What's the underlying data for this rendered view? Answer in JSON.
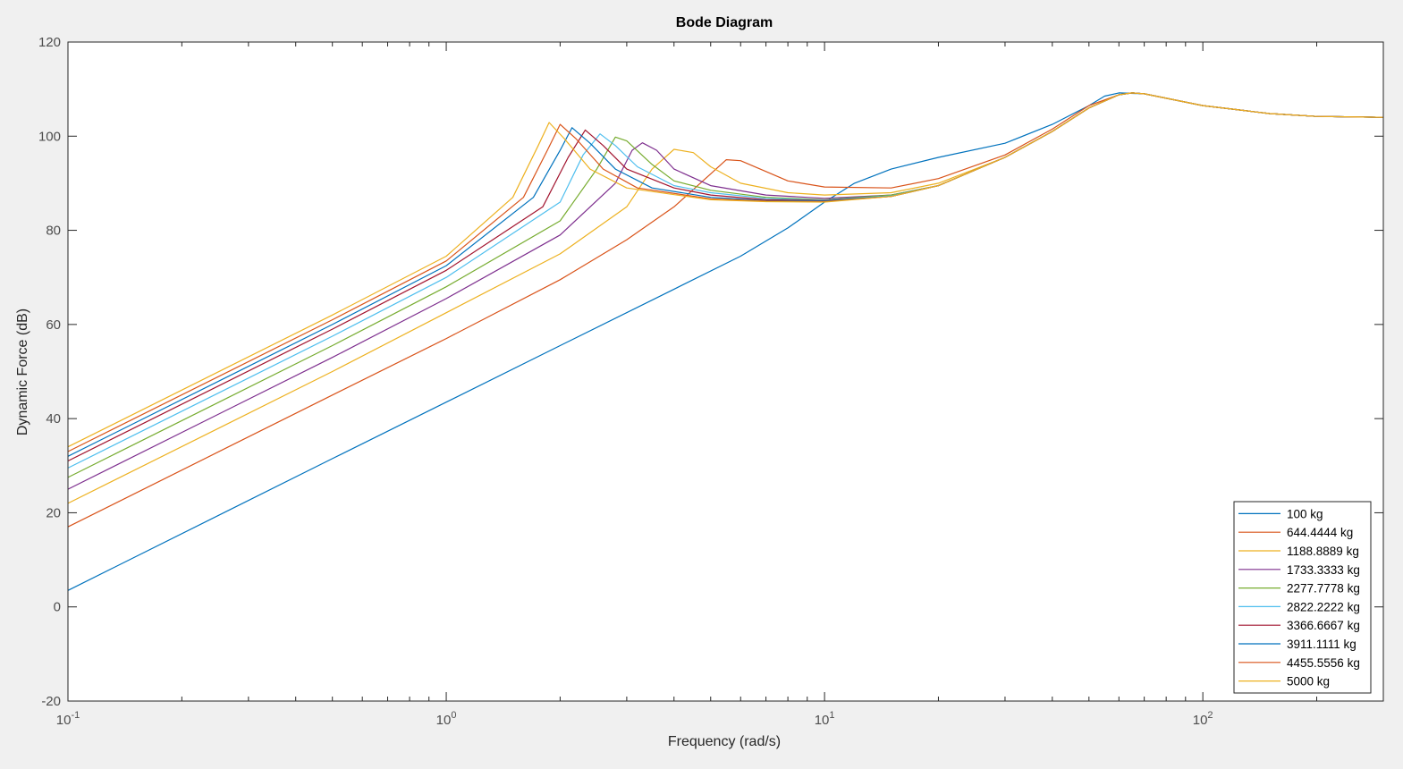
{
  "chart_data": {
    "type": "line",
    "title": "Bode Diagram",
    "xlabel": "Frequency  (rad/s)",
    "ylabel": "Dynamic Force (dB)",
    "xscale": "log",
    "xlim": [
      0.1,
      300
    ],
    "ylim": [
      -20,
      120
    ],
    "yticks": [
      -20,
      0,
      20,
      40,
      60,
      80,
      100,
      120
    ],
    "xticks": [
      {
        "value": 0.1,
        "base": "10",
        "exp": "-1"
      },
      {
        "value": 1,
        "base": "10",
        "exp": "0"
      },
      {
        "value": 10,
        "base": "10",
        "exp": "1"
      },
      {
        "value": 100,
        "base": "10",
        "exp": "2"
      }
    ],
    "grid": false,
    "legend_position": "bottom-right",
    "series": [
      {
        "name": "100 kg",
        "color": "#0072BD",
        "points": [
          [
            0.1,
            3.5
          ],
          [
            0.5,
            31.5
          ],
          [
            1,
            43.5
          ],
          [
            2,
            55.5
          ],
          [
            4,
            67.5
          ],
          [
            6,
            74.5
          ],
          [
            8,
            80.5
          ],
          [
            10,
            86
          ],
          [
            12,
            90
          ],
          [
            15,
            93
          ],
          [
            20,
            95.5
          ],
          [
            30,
            98.5
          ],
          [
            40,
            102.5
          ],
          [
            50,
            106.5
          ],
          [
            55,
            108.5
          ],
          [
            60,
            109.2
          ],
          [
            70,
            109
          ],
          [
            100,
            106.5
          ],
          [
            150,
            104.8
          ],
          [
            200,
            104.2
          ],
          [
            300,
            104
          ]
        ]
      },
      {
        "name": "644.4444 kg",
        "color": "#D95319",
        "points": [
          [
            0.1,
            17
          ],
          [
            0.5,
            45
          ],
          [
            1,
            57
          ],
          [
            2,
            69.5
          ],
          [
            3,
            78
          ],
          [
            4,
            85
          ],
          [
            5,
            92
          ],
          [
            5.5,
            95
          ],
          [
            6,
            94.8
          ],
          [
            7,
            92.5
          ],
          [
            8,
            90.5
          ],
          [
            10,
            89.2
          ],
          [
            15,
            89
          ],
          [
            20,
            91
          ],
          [
            30,
            96
          ],
          [
            40,
            101.5
          ],
          [
            50,
            106.5
          ],
          [
            60,
            108.8
          ],
          [
            65,
            109.2
          ],
          [
            70,
            109
          ],
          [
            100,
            106.5
          ],
          [
            150,
            104.8
          ],
          [
            200,
            104.2
          ],
          [
            300,
            104
          ]
        ]
      },
      {
        "name": "1188.8889 kg",
        "color": "#EDB120",
        "points": [
          [
            0.1,
            22
          ],
          [
            0.5,
            50
          ],
          [
            1,
            62.5
          ],
          [
            2,
            75
          ],
          [
            3,
            85
          ],
          [
            3.5,
            93
          ],
          [
            4,
            97.2
          ],
          [
            4.5,
            96.5
          ],
          [
            5,
            93.5
          ],
          [
            6,
            90
          ],
          [
            8,
            88
          ],
          [
            10,
            87.5
          ],
          [
            15,
            88
          ],
          [
            20,
            90
          ],
          [
            30,
            95.5
          ],
          [
            40,
            101
          ],
          [
            50,
            106
          ],
          [
            60,
            108.8
          ],
          [
            65,
            109.2
          ],
          [
            70,
            109
          ],
          [
            100,
            106.5
          ],
          [
            150,
            104.8
          ],
          [
            200,
            104.2
          ],
          [
            300,
            104
          ]
        ]
      },
      {
        "name": "1733.3333 kg",
        "color": "#7E2F8E",
        "points": [
          [
            0.1,
            25
          ],
          [
            0.5,
            53
          ],
          [
            1,
            65.5
          ],
          [
            2,
            79
          ],
          [
            2.8,
            90
          ],
          [
            3.1,
            97
          ],
          [
            3.3,
            98.6
          ],
          [
            3.6,
            97
          ],
          [
            4,
            93
          ],
          [
            5,
            89.5
          ],
          [
            7,
            87.5
          ],
          [
            10,
            86.8
          ],
          [
            15,
            87.5
          ],
          [
            20,
            89.5
          ],
          [
            30,
            95.5
          ],
          [
            40,
            101
          ],
          [
            50,
            106
          ],
          [
            60,
            108.8
          ],
          [
            65,
            109.2
          ],
          [
            70,
            109
          ],
          [
            100,
            106.5
          ],
          [
            150,
            104.8
          ],
          [
            200,
            104.2
          ],
          [
            300,
            104
          ]
        ]
      },
      {
        "name": "2277.7778 kg",
        "color": "#77AC30",
        "points": [
          [
            0.1,
            27.5
          ],
          [
            0.5,
            55.5
          ],
          [
            1,
            68
          ],
          [
            2,
            82
          ],
          [
            2.5,
            93
          ],
          [
            2.8,
            99.8
          ],
          [
            3,
            99
          ],
          [
            3.5,
            94
          ],
          [
            4,
            90.5
          ],
          [
            5,
            88.5
          ],
          [
            7,
            87
          ],
          [
            10,
            86.5
          ],
          [
            15,
            87.5
          ],
          [
            20,
            89.5
          ],
          [
            30,
            95.5
          ],
          [
            40,
            101
          ],
          [
            50,
            106
          ],
          [
            60,
            108.8
          ],
          [
            65,
            109.2
          ],
          [
            70,
            109
          ],
          [
            100,
            106.5
          ],
          [
            150,
            104.8
          ],
          [
            200,
            104.2
          ],
          [
            300,
            104
          ]
        ]
      },
      {
        "name": "2822.2222 kg",
        "color": "#4DBEEE",
        "points": [
          [
            0.1,
            29.5
          ],
          [
            0.5,
            57.5
          ],
          [
            1,
            70
          ],
          [
            2,
            86
          ],
          [
            2.3,
            96
          ],
          [
            2.55,
            100.5
          ],
          [
            2.8,
            98
          ],
          [
            3.2,
            93.5
          ],
          [
            4,
            89.5
          ],
          [
            5,
            88
          ],
          [
            7,
            86.8
          ],
          [
            10,
            86.4
          ],
          [
            15,
            87.3
          ],
          [
            20,
            89.5
          ],
          [
            30,
            95.5
          ],
          [
            40,
            101
          ],
          [
            50,
            106
          ],
          [
            60,
            108.8
          ],
          [
            65,
            109.2
          ],
          [
            70,
            109
          ],
          [
            100,
            106.5
          ],
          [
            150,
            104.8
          ],
          [
            200,
            104.2
          ],
          [
            300,
            104
          ]
        ]
      },
      {
        "name": "3366.6667 kg",
        "color": "#A2142F",
        "points": [
          [
            0.1,
            31
          ],
          [
            0.5,
            59
          ],
          [
            1,
            71.5
          ],
          [
            1.8,
            85
          ],
          [
            2.1,
            95.5
          ],
          [
            2.33,
            101.3
          ],
          [
            2.6,
            98
          ],
          [
            3,
            93
          ],
          [
            4,
            89
          ],
          [
            5,
            87.5
          ],
          [
            7,
            86.5
          ],
          [
            10,
            86.3
          ],
          [
            15,
            87.2
          ],
          [
            20,
            89.5
          ],
          [
            30,
            95.5
          ],
          [
            40,
            101
          ],
          [
            50,
            106
          ],
          [
            60,
            108.8
          ],
          [
            65,
            109.2
          ],
          [
            70,
            109
          ],
          [
            100,
            106.5
          ],
          [
            150,
            104.8
          ],
          [
            200,
            104.2
          ],
          [
            300,
            104
          ]
        ]
      },
      {
        "name": "3911.1111 kg",
        "color": "#0072BD",
        "points": [
          [
            0.1,
            32
          ],
          [
            0.5,
            60
          ],
          [
            1,
            72.5
          ],
          [
            1.7,
            87
          ],
          [
            2,
            97
          ],
          [
            2.15,
            101.8
          ],
          [
            2.4,
            98.5
          ],
          [
            2.8,
            93
          ],
          [
            3.5,
            89
          ],
          [
            5,
            87
          ],
          [
            7,
            86.3
          ],
          [
            10,
            86.2
          ],
          [
            15,
            87.2
          ],
          [
            20,
            89.5
          ],
          [
            30,
            95.5
          ],
          [
            40,
            101
          ],
          [
            50,
            106
          ],
          [
            60,
            108.8
          ],
          [
            65,
            109.2
          ],
          [
            70,
            109
          ],
          [
            100,
            106.5
          ],
          [
            150,
            104.8
          ],
          [
            200,
            104.2
          ],
          [
            300,
            104
          ]
        ]
      },
      {
        "name": "4455.5556 kg",
        "color": "#D95319",
        "points": [
          [
            0.1,
            33
          ],
          [
            0.5,
            61
          ],
          [
            1,
            73.5
          ],
          [
            1.6,
            87
          ],
          [
            1.85,
            97
          ],
          [
            2,
            102.5
          ],
          [
            2.2,
            99.5
          ],
          [
            2.6,
            93
          ],
          [
            3.2,
            89
          ],
          [
            5,
            86.7
          ],
          [
            7,
            86.2
          ],
          [
            10,
            86.1
          ],
          [
            15,
            87.2
          ],
          [
            20,
            89.5
          ],
          [
            30,
            95.5
          ],
          [
            40,
            101
          ],
          [
            50,
            106
          ],
          [
            60,
            108.8
          ],
          [
            65,
            109.2
          ],
          [
            70,
            109
          ],
          [
            100,
            106.5
          ],
          [
            150,
            104.8
          ],
          [
            200,
            104.2
          ],
          [
            300,
            104
          ]
        ]
      },
      {
        "name": "5000 kg",
        "color": "#EDB120",
        "points": [
          [
            0.1,
            34
          ],
          [
            0.5,
            62
          ],
          [
            1,
            74.5
          ],
          [
            1.5,
            87
          ],
          [
            1.75,
            98
          ],
          [
            1.87,
            102.9
          ],
          [
            2.05,
            99.5
          ],
          [
            2.4,
            93
          ],
          [
            3,
            89
          ],
          [
            5,
            86.5
          ],
          [
            7,
            86.1
          ],
          [
            10,
            86
          ],
          [
            15,
            87.2
          ],
          [
            20,
            89.5
          ],
          [
            30,
            95.5
          ],
          [
            40,
            101
          ],
          [
            50,
            106
          ],
          [
            60,
            108.8
          ],
          [
            65,
            109.2
          ],
          [
            70,
            109
          ],
          [
            100,
            106.5
          ],
          [
            150,
            104.8
          ],
          [
            200,
            104.2
          ],
          [
            300,
            104
          ]
        ]
      }
    ]
  }
}
